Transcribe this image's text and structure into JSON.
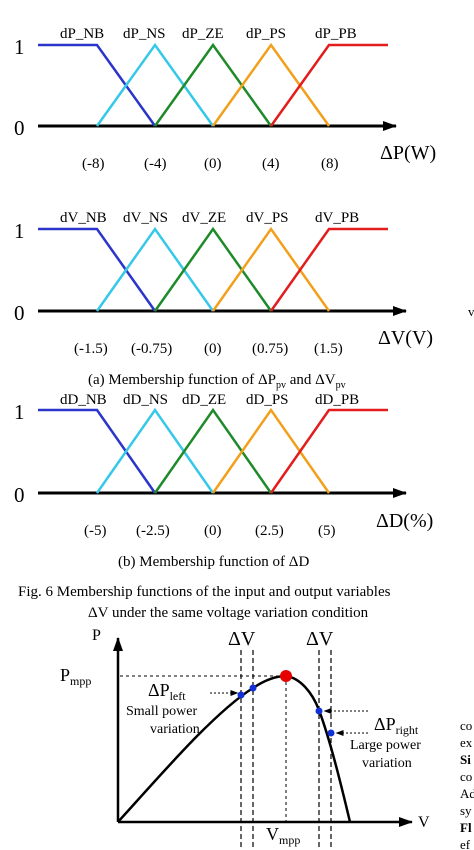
{
  "colors": {
    "nb": "#2b35c9",
    "ns": "#35c8e8",
    "ze": "#1f8a2a",
    "ps": "#f2a01c",
    "pb": "#e31d1d",
    "axis": "#000000",
    "mpp_point": "#e60000",
    "blue_point": "#1230d8"
  },
  "chart_data": [
    {
      "type": "line",
      "name_key": "dP",
      "ylabel_top": "1",
      "ylabel_zero": "0",
      "axis_label": "ΔP(W)",
      "set_labels": [
        "dP_NB",
        "dP_NS",
        "dP_ZE",
        "dP_PS",
        "dP_PB"
      ],
      "tick_labels": [
        "(-8)",
        "(-4)",
        "(0)",
        "(4)",
        "(8)"
      ],
      "centers": [
        -8,
        -4,
        0,
        4,
        8
      ],
      "ylim": [
        0,
        1
      ]
    },
    {
      "type": "line",
      "name_key": "dV",
      "ylabel_top": "1",
      "ylabel_zero": "0",
      "axis_label": "ΔV(V)",
      "set_labels": [
        "dV_NB",
        "dV_NS",
        "dV_ZE",
        "dV_PS",
        "dV_PB"
      ],
      "tick_labels": [
        "(-1.5)",
        "(-0.75)",
        "(0)",
        "(0.75)",
        "(1.5)"
      ],
      "centers": [
        -1.5,
        -0.75,
        0,
        0.75,
        1.5
      ],
      "ylim": [
        0,
        1
      ]
    },
    {
      "type": "line",
      "name_key": "dD",
      "ylabel_top": "1",
      "ylabel_zero": "0",
      "axis_label": "ΔD(%)",
      "set_labels": [
        "dD_NB",
        "dD_NS",
        "dD_ZE",
        "dD_PS",
        "dD_PB"
      ],
      "tick_labels": [
        "(-5)",
        "(-2.5)",
        "(0)",
        "(2.5)",
        "(5)"
      ],
      "centers": [
        -5,
        -2.5,
        0,
        2.5,
        5
      ],
      "ylim": [
        0,
        1
      ]
    }
  ],
  "captions": {
    "a": "(a) Membership function of ΔPpv and ΔVpv",
    "b": "(b) Membership function of ΔD",
    "fig6": "Fig. 6 Membership functions of the input and output variables",
    "fig7_head": "ΔV under the same voltage variation condition"
  },
  "pv_plot": {
    "y_axis": "P",
    "x_axis": "V",
    "pmpp": "Pmpp",
    "vmpp": "Vmpp",
    "dv1": "ΔV",
    "dv2": "ΔV",
    "dp_left": "ΔPleft",
    "dp_right": "ΔPright",
    "small_1": "Small power",
    "small_2": "variation",
    "large_1": "Large power",
    "large_2": "variation"
  },
  "margin_text": {
    "frag_right": "v",
    "lines": [
      "co",
      "ex",
      "Si",
      "co",
      "Ad",
      "sy",
      "Fl",
      "ef"
    ]
  }
}
